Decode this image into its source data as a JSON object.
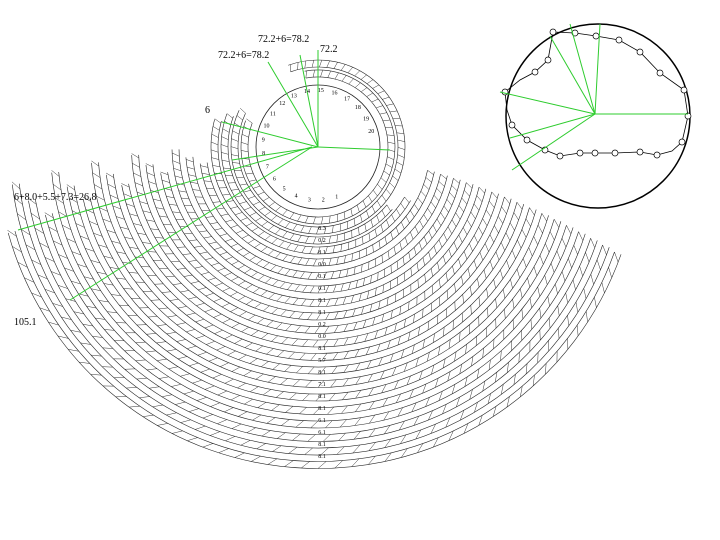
{
  "labels": {
    "top_sum": "72.2+6=78.2",
    "inner_sum": "72.2+6=78.2",
    "base": "72.2",
    "six": "6",
    "left_sum": "6+8.0+5.5+7.3=26.8",
    "bottom_left": "105.1"
  },
  "ring_numbers": [
    "1",
    "2",
    "3",
    "4",
    "5",
    "6",
    "7",
    "8",
    "9",
    "10",
    "11",
    "12",
    "13",
    "14",
    "15",
    "16",
    "17",
    "18",
    "19",
    "20"
  ],
  "column_numbers": [
    "8.3",
    "0.2",
    "8.1",
    "0.0",
    "0.1",
    "0.1",
    "8.1",
    "8.1",
    "0.2",
    "0.0",
    "8.1",
    "5.7",
    "8.1",
    "7.1",
    "8.1",
    "8.1",
    "6.1",
    "6.1",
    "8.1",
    "8.1"
  ]
}
